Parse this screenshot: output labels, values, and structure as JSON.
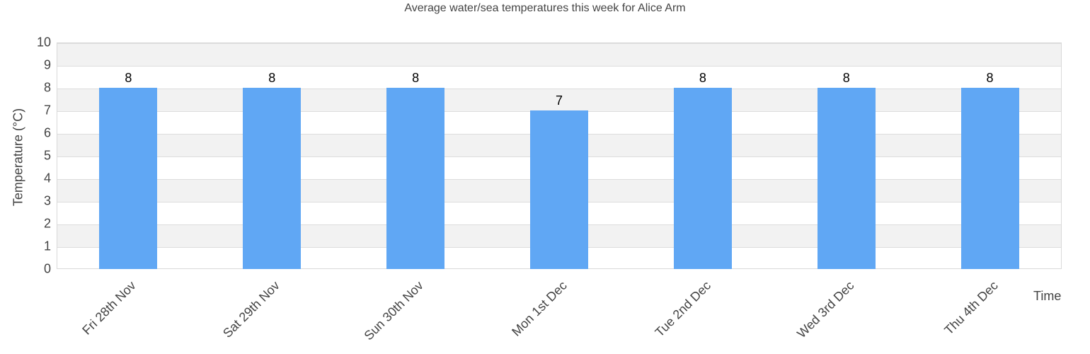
{
  "chart_data": {
    "type": "bar",
    "title": "Average water/sea temperatures this week for Alice Arm",
    "xlabel": "Time",
    "ylabel": "Temperature (°C)",
    "ylim": [
      0,
      10
    ],
    "yticks": [
      "0",
      "1",
      "2",
      "3",
      "4",
      "5",
      "6",
      "7",
      "8",
      "9",
      "10"
    ],
    "categories": [
      "Fri 28th Nov",
      "Sat 29th Nov",
      "Sun 30th Nov",
      "Mon 1st Dec",
      "Tue 2nd Dec",
      "Wed 3rd Dec",
      "Thu 4th Dec"
    ],
    "values": [
      8,
      8,
      8,
      7,
      8,
      8,
      8
    ],
    "value_labels": [
      "8",
      "8",
      "8",
      "7",
      "8",
      "8",
      "8"
    ],
    "bar_color": "#60a7f4",
    "grid": true,
    "legend": null
  }
}
